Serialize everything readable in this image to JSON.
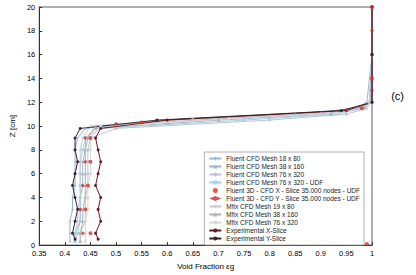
{
  "chart_data": {
    "type": "line",
    "x_label": "Void Fraction εg",
    "y_label": "Z [cm]",
    "xlim": [
      0.35,
      1
    ],
    "ylim": [
      0,
      20
    ],
    "xticks": [
      0.35,
      0.4,
      0.45,
      0.5,
      0.55,
      0.6,
      0.65,
      0.7,
      0.75,
      0.8,
      0.85,
      0.9,
      0.95,
      1
    ],
    "yticks": [
      0,
      2,
      4,
      6,
      8,
      10,
      12,
      14,
      16,
      18,
      20
    ],
    "grid": false,
    "legend": "lower right",
    "annotations": [
      {
        "text": "(c)"
      }
    ],
    "series": [
      {
        "name": "Fluent CFD Mesh 18 x 80",
        "color": "#8fb8d8",
        "marker": "cross",
        "line_style": "solid",
        "values": [
          [
            0.41,
            0.3
          ],
          [
            0.41,
            1
          ],
          [
            0.41,
            2
          ],
          [
            0.415,
            3
          ],
          [
            0.415,
            4
          ],
          [
            0.42,
            5
          ],
          [
            0.42,
            6
          ],
          [
            0.42,
            7
          ],
          [
            0.42,
            8
          ],
          [
            0.425,
            9
          ],
          [
            0.44,
            9.8
          ],
          [
            0.6,
            10.5
          ],
          [
            0.85,
            11
          ],
          [
            0.97,
            11.5
          ],
          [
            0.99,
            12
          ],
          [
            1,
            16
          ],
          [
            1,
            20
          ]
        ]
      },
      {
        "name": "Fluent CFD Mesh 38 x 160",
        "color": "#9fb4c8",
        "marker": "triangle",
        "line_style": "solid",
        "values": [
          [
            0.42,
            0.3
          ],
          [
            0.42,
            1
          ],
          [
            0.43,
            2
          ],
          [
            0.43,
            3
          ],
          [
            0.43,
            4
          ],
          [
            0.435,
            5
          ],
          [
            0.435,
            6
          ],
          [
            0.435,
            7
          ],
          [
            0.44,
            8
          ],
          [
            0.44,
            9
          ],
          [
            0.46,
            9.8
          ],
          [
            0.7,
            10.5
          ],
          [
            0.92,
            11
          ],
          [
            0.985,
            11.5
          ],
          [
            0.995,
            12
          ],
          [
            1,
            16
          ],
          [
            1,
            20
          ]
        ]
      },
      {
        "name": "Fluent CFD Mesh 76 x 320",
        "color": "#b8c8d8",
        "marker": "circle",
        "line_style": "solid",
        "values": [
          [
            0.43,
            0.3
          ],
          [
            0.43,
            1
          ],
          [
            0.44,
            2
          ],
          [
            0.44,
            3
          ],
          [
            0.44,
            4
          ],
          [
            0.445,
            5
          ],
          [
            0.445,
            6
          ],
          [
            0.445,
            7
          ],
          [
            0.445,
            8
          ],
          [
            0.45,
            9
          ],
          [
            0.5,
            9.8
          ],
          [
            0.8,
            10.5
          ],
          [
            0.95,
            11
          ],
          [
            0.99,
            11.5
          ],
          [
            0.998,
            12
          ],
          [
            1,
            16
          ],
          [
            1,
            20
          ]
        ]
      },
      {
        "name": "Fluent CFD Mesh 76 x 320 - UDF",
        "color": "#a8d0e8",
        "marker": "square",
        "line_style": "solid",
        "values": [
          [
            0.42,
            0.3
          ],
          [
            0.425,
            1
          ],
          [
            0.43,
            2
          ],
          [
            0.43,
            3
          ],
          [
            0.43,
            4
          ],
          [
            0.43,
            5
          ],
          [
            0.43,
            6
          ],
          [
            0.43,
            7
          ],
          [
            0.435,
            8
          ],
          [
            0.44,
            9
          ],
          [
            0.47,
            9.8
          ],
          [
            0.75,
            10.5
          ],
          [
            0.93,
            11
          ],
          [
            0.985,
            11.5
          ],
          [
            0.995,
            12
          ],
          [
            1,
            16
          ],
          [
            1,
            20
          ]
        ]
      },
      {
        "name": "Fluent 3D - CFD X - Slice 35.000 nodes - UDF",
        "color": "#e03020",
        "marker": "circle",
        "type": "scatter",
        "values": [
          [
            0.99,
            0.1
          ],
          [
            0.45,
            1
          ],
          [
            0.44,
            3
          ],
          [
            0.445,
            5
          ],
          [
            0.45,
            7
          ],
          [
            0.45,
            9
          ],
          [
            0.55,
            10.3
          ],
          [
            0.98,
            11.5
          ],
          [
            1,
            14
          ],
          [
            1,
            20
          ]
        ]
      },
      {
        "name": "Fluent 3D - CFD Y - Slice 35.000 nodes - UDF",
        "color": "#c03030",
        "marker": "diamond",
        "type": "scatter",
        "values": [
          [
            0.435,
            1
          ],
          [
            0.43,
            3
          ],
          [
            0.435,
            5
          ],
          [
            0.44,
            7
          ],
          [
            0.44,
            9
          ],
          [
            0.5,
            10.2
          ],
          [
            0.95,
            11.3
          ],
          [
            1,
            13
          ],
          [
            1,
            18
          ]
        ]
      },
      {
        "name": "Mfix CFD Mesh 19 x 80",
        "color": "#c8c8c8",
        "marker": "cross",
        "line_style": "solid",
        "values": [
          [
            0.42,
            0.3
          ],
          [
            0.42,
            1
          ],
          [
            0.425,
            2
          ],
          [
            0.425,
            3
          ],
          [
            0.43,
            4
          ],
          [
            0.43,
            5
          ],
          [
            0.43,
            6
          ],
          [
            0.43,
            7
          ],
          [
            0.43,
            8
          ],
          [
            0.435,
            9
          ],
          [
            0.45,
            10
          ],
          [
            0.65,
            10.6
          ],
          [
            0.9,
            11.1
          ],
          [
            0.98,
            11.6
          ],
          [
            0.995,
            12
          ],
          [
            1,
            16
          ],
          [
            1,
            20
          ]
        ]
      },
      {
        "name": "Mfix CFD Mesh 38 x 160",
        "color": "#b0b0b0",
        "marker": "triangle",
        "line_style": "solid",
        "values": [
          [
            0.43,
            0.3
          ],
          [
            0.43,
            1
          ],
          [
            0.435,
            2
          ],
          [
            0.435,
            3
          ],
          [
            0.44,
            4
          ],
          [
            0.44,
            5
          ],
          [
            0.44,
            6
          ],
          [
            0.44,
            7
          ],
          [
            0.44,
            8
          ],
          [
            0.445,
            9
          ],
          [
            0.46,
            10
          ],
          [
            0.7,
            10.6
          ],
          [
            0.92,
            11.1
          ],
          [
            0.985,
            11.6
          ],
          [
            0.997,
            12
          ],
          [
            1,
            16
          ],
          [
            1,
            20
          ]
        ]
      },
      {
        "name": "Mfix CFD Mesh 76 x 320",
        "color": "#d8d8d8",
        "marker": "circle",
        "line_style": "solid",
        "values": [
          [
            0.44,
            0.3
          ],
          [
            0.44,
            1
          ],
          [
            0.44,
            2
          ],
          [
            0.445,
            3
          ],
          [
            0.445,
            4
          ],
          [
            0.445,
            5
          ],
          [
            0.45,
            6
          ],
          [
            0.45,
            7
          ],
          [
            0.45,
            8
          ],
          [
            0.45,
            9
          ],
          [
            0.47,
            10
          ],
          [
            0.72,
            10.6
          ],
          [
            0.93,
            11.1
          ],
          [
            0.99,
            11.6
          ],
          [
            0.998,
            12
          ],
          [
            1,
            16
          ],
          [
            1,
            20
          ]
        ]
      },
      {
        "name": "Experimental X-Slice",
        "color": "#6b1a1a",
        "marker": "circle",
        "line_style": "solid",
        "values": [
          [
            0.465,
            0.5
          ],
          [
            0.46,
            1
          ],
          [
            0.47,
            2
          ],
          [
            0.465,
            3
          ],
          [
            0.47,
            4
          ],
          [
            0.46,
            5
          ],
          [
            0.465,
            6
          ],
          [
            0.47,
            7
          ],
          [
            0.465,
            8
          ],
          [
            0.46,
            9
          ],
          [
            0.47,
            9.8
          ],
          [
            0.6,
            10.5
          ],
          [
            0.95,
            11.3
          ],
          [
            1,
            12
          ],
          [
            1,
            16
          ],
          [
            1,
            20
          ]
        ]
      },
      {
        "name": "Experimental Y-Slice",
        "color": "#3a2030",
        "marker": "circle",
        "line_style": "solid",
        "values": [
          [
            0.42,
            0.5
          ],
          [
            0.415,
            1
          ],
          [
            0.42,
            2
          ],
          [
            0.425,
            3
          ],
          [
            0.42,
            4
          ],
          [
            0.415,
            5
          ],
          [
            0.42,
            6
          ],
          [
            0.425,
            7
          ],
          [
            0.42,
            8
          ],
          [
            0.42,
            9
          ],
          [
            0.43,
            9.8
          ],
          [
            0.58,
            10.5
          ],
          [
            0.94,
            11.3
          ],
          [
            1,
            12
          ],
          [
            1,
            16
          ],
          [
            1,
            20
          ]
        ]
      }
    ]
  }
}
